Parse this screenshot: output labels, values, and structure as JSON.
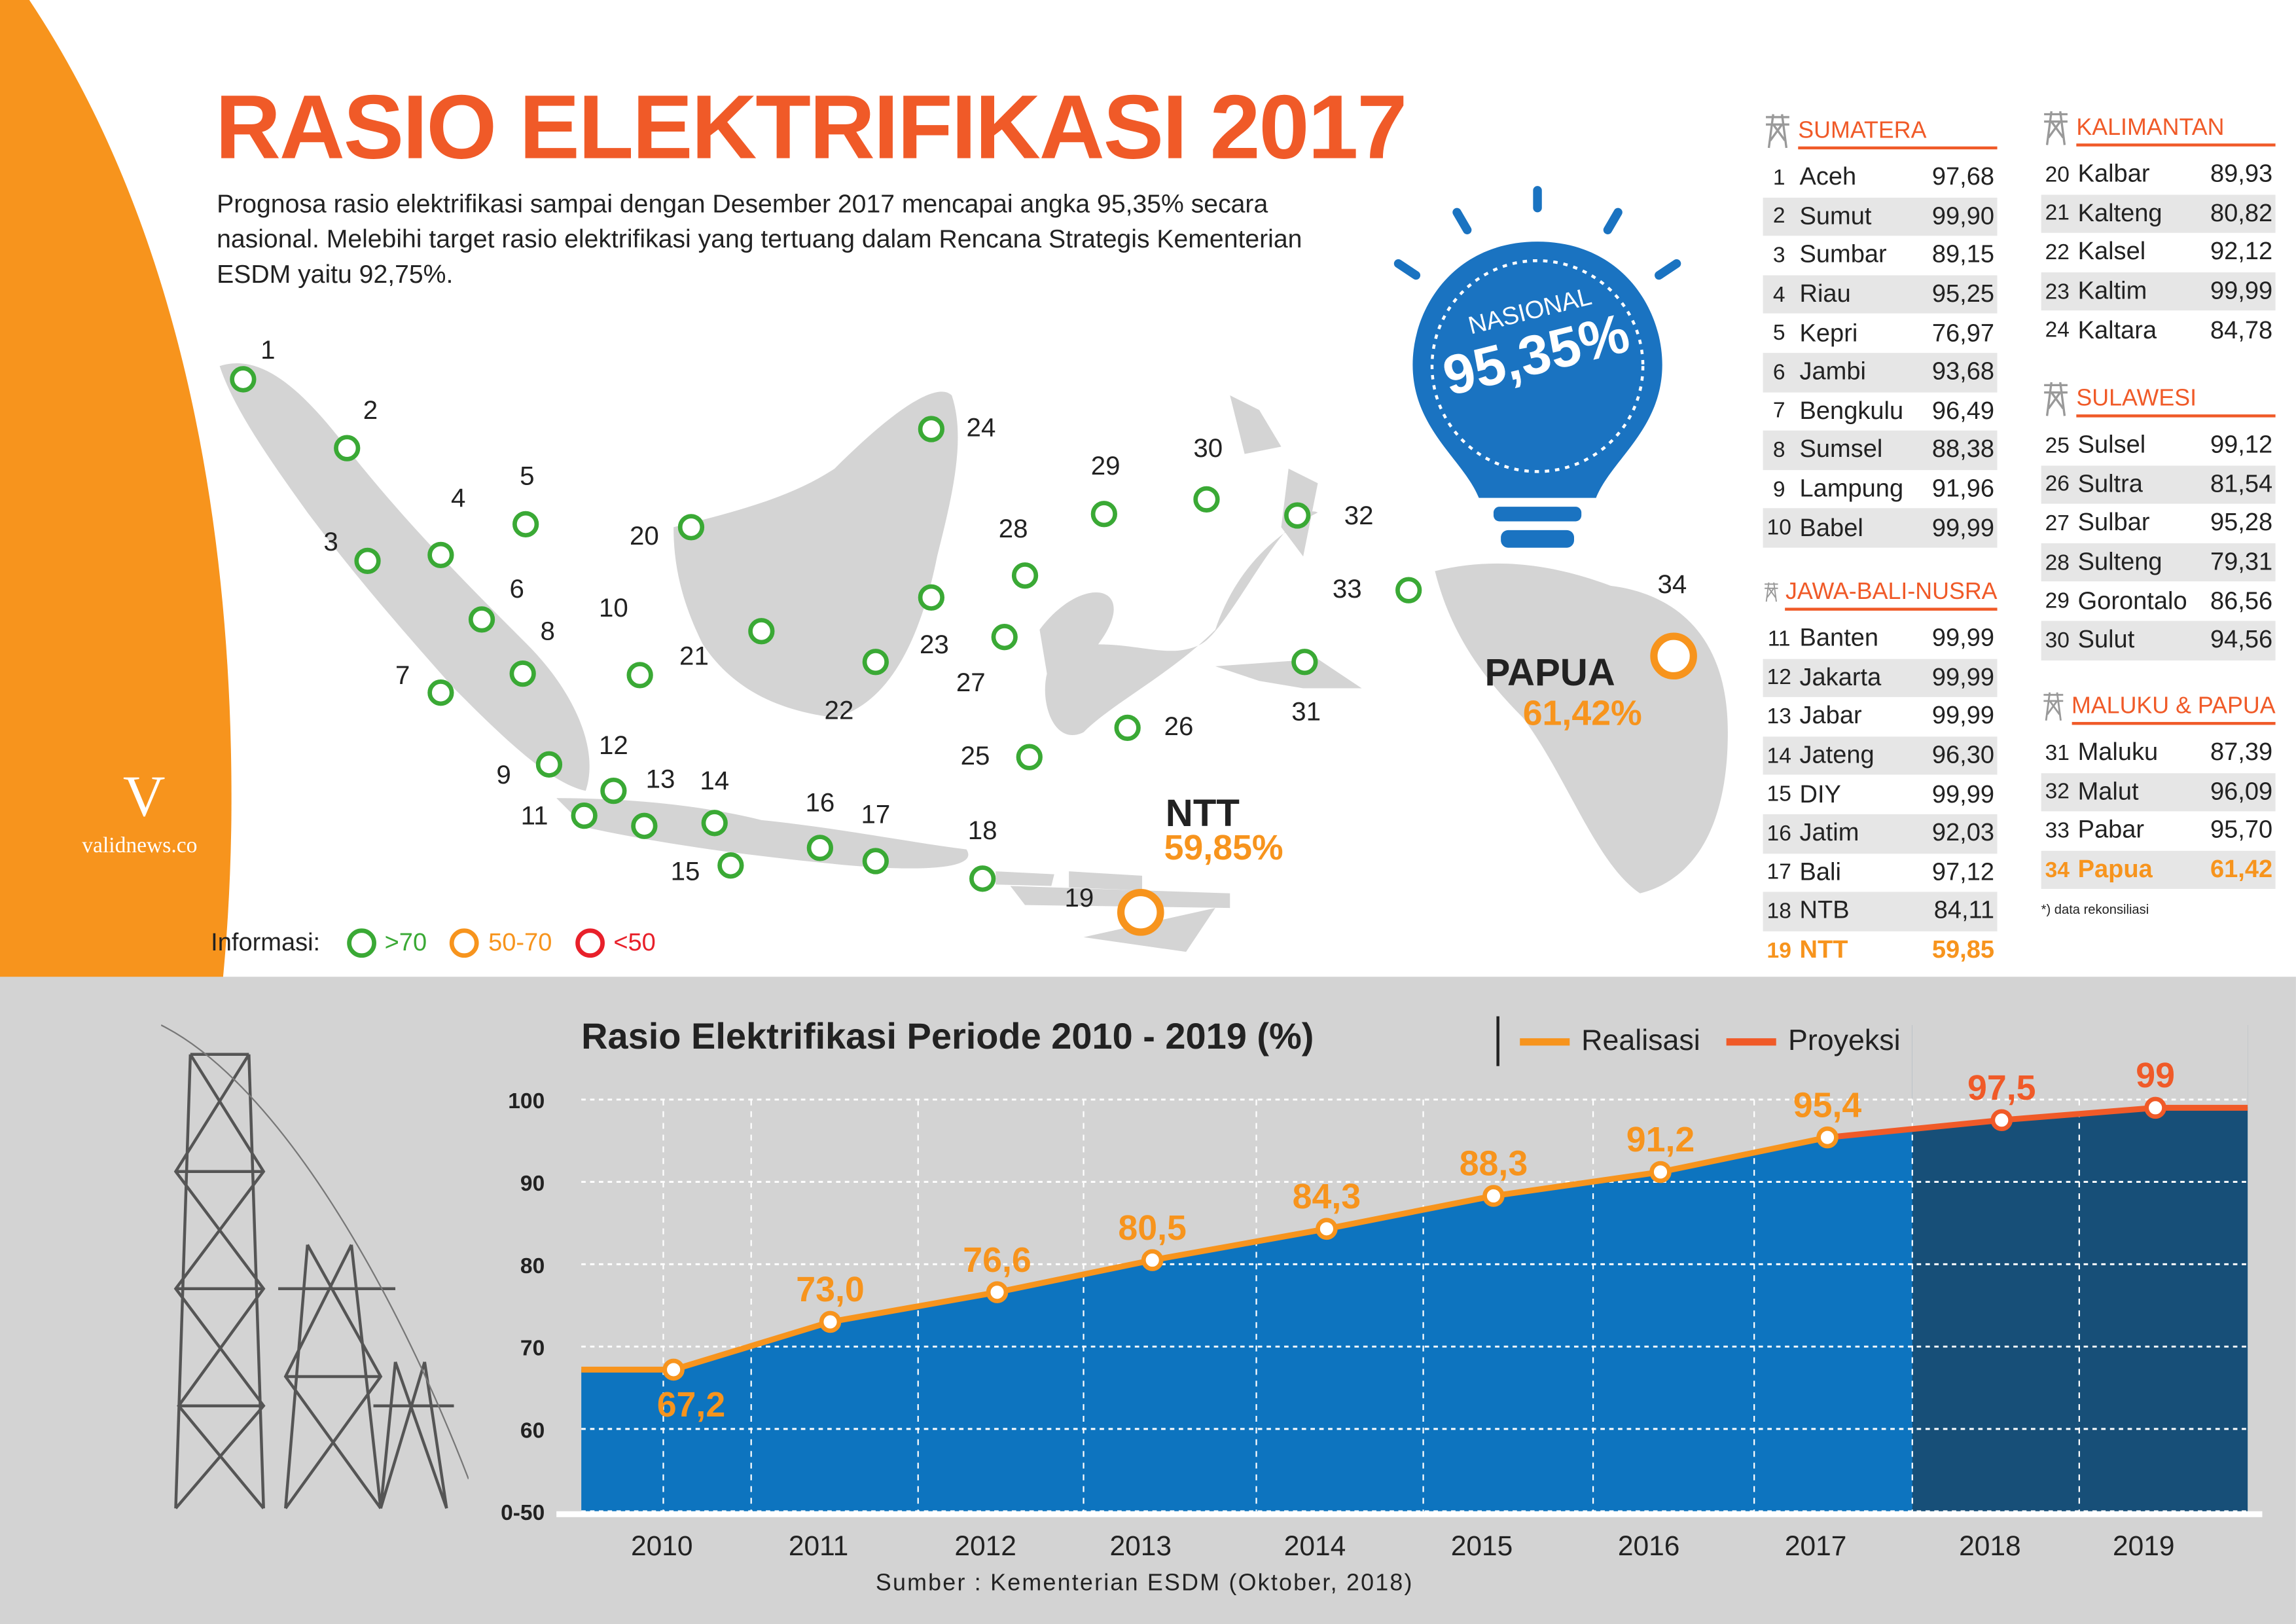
{
  "header": {
    "title": "RASIO ELEKTRIFIKASI 2017",
    "intro": "Prognosa rasio elektrifikasi sampai dengan Desember 2017 mencapai angka 95,35% secara nasional. Melebihi target rasio elektrifikasi yang tertuang dalam Rencana Strategis Kementerian ESDM yaitu 92,75%."
  },
  "nasional": {
    "label": "NASIONAL",
    "value": "95,35%"
  },
  "highlights": {
    "ntt_name": "NTT",
    "ntt_value": "59,85%",
    "papua_name": "PAPUA",
    "papua_value": "61,42%"
  },
  "legend": {
    "label": "Informasi:",
    "items": [
      {
        "text": ">70",
        "color": "#3aa935"
      },
      {
        "text": "50-70",
        "color": "#f7941d"
      },
      {
        "text": "<50",
        "color": "#e8202a"
      }
    ]
  },
  "map": {
    "markers": [
      {
        "n": "1",
        "status": ">70"
      },
      {
        "n": "2",
        "status": ">70"
      },
      {
        "n": "3",
        "status": ">70"
      },
      {
        "n": "4",
        "status": ">70"
      },
      {
        "n": "5",
        "status": ">70"
      },
      {
        "n": "6",
        "status": ">70"
      },
      {
        "n": "7",
        "status": ">70"
      },
      {
        "n": "8",
        "status": ">70"
      },
      {
        "n": "9",
        "status": ">70"
      },
      {
        "n": "10",
        "status": ">70"
      },
      {
        "n": "11",
        "status": ">70"
      },
      {
        "n": "12",
        "status": ">70"
      },
      {
        "n": "13",
        "status": ">70"
      },
      {
        "n": "14",
        "status": ">70"
      },
      {
        "n": "15",
        "status": ">70"
      },
      {
        "n": "16",
        "status": ">70"
      },
      {
        "n": "17",
        "status": ">70"
      },
      {
        "n": "18",
        "status": ">70"
      },
      {
        "n": "19",
        "status": "50-70"
      },
      {
        "n": "20",
        "status": ">70"
      },
      {
        "n": "21",
        "status": ">70"
      },
      {
        "n": "22",
        "status": ">70"
      },
      {
        "n": "23",
        "status": ">70"
      },
      {
        "n": "24",
        "status": ">70"
      },
      {
        "n": "25",
        "status": ">70"
      },
      {
        "n": "26",
        "status": ">70"
      },
      {
        "n": "27",
        "status": ">70"
      },
      {
        "n": "28",
        "status": ">70"
      },
      {
        "n": "29",
        "status": ">70"
      },
      {
        "n": "30",
        "status": ">70"
      },
      {
        "n": "31",
        "status": ">70"
      },
      {
        "n": "32",
        "status": ">70"
      },
      {
        "n": "33",
        "status": ">70"
      },
      {
        "n": "34",
        "status": "50-70"
      }
    ]
  },
  "regions": [
    {
      "title": "SUMATERA",
      "rows": [
        [
          "1",
          "Aceh",
          "97,68"
        ],
        [
          "2",
          "Sumut",
          "99,90"
        ],
        [
          "3",
          "Sumbar",
          "89,15"
        ],
        [
          "4",
          "Riau",
          "95,25"
        ],
        [
          "5",
          "Kepri",
          "76,97"
        ],
        [
          "6",
          "Jambi",
          "93,68"
        ],
        [
          "7",
          "Bengkulu",
          "96,49"
        ],
        [
          "8",
          "Sumsel",
          "88,38"
        ],
        [
          "9",
          "Lampung",
          "91,96"
        ],
        [
          "10",
          "Babel",
          "99,99"
        ]
      ]
    },
    {
      "title": "JAWA-BALI-NUSRA",
      "rows": [
        [
          "11",
          "Banten",
          "99,99"
        ],
        [
          "12",
          "Jakarta",
          "99,99"
        ],
        [
          "13",
          "Jabar",
          "99,99"
        ],
        [
          "14",
          "Jateng",
          "96,30"
        ],
        [
          "15",
          "DIY",
          "99,99"
        ],
        [
          "16",
          "Jatim",
          "92,03"
        ],
        [
          "17",
          "Bali",
          "97,12"
        ],
        [
          "18",
          "NTB",
          "84,11"
        ],
        [
          "19",
          "NTT",
          "59,85",
          "hl"
        ]
      ]
    },
    {
      "title": "KALIMANTAN",
      "rows": [
        [
          "20",
          "Kalbar",
          "89,93"
        ],
        [
          "21",
          "Kalteng",
          "80,82"
        ],
        [
          "22",
          "Kalsel",
          "92,12"
        ],
        [
          "23",
          "Kaltim",
          "99,99"
        ],
        [
          "24",
          "Kaltara",
          "84,78"
        ]
      ]
    },
    {
      "title": "SULAWESI",
      "rows": [
        [
          "25",
          "Sulsel",
          "99,12"
        ],
        [
          "26",
          "Sultra",
          "81,54"
        ],
        [
          "27",
          "Sulbar",
          "95,28"
        ],
        [
          "28",
          "Sulteng",
          "79,31"
        ],
        [
          "29",
          "Gorontalo",
          "86,56"
        ],
        [
          "30",
          "Sulut",
          "94,56"
        ]
      ]
    },
    {
      "title": "MALUKU & PAPUA",
      "rows": [
        [
          "31",
          "Maluku",
          "87,39"
        ],
        [
          "32",
          "Malut",
          "96,09"
        ],
        [
          "33",
          "Pabar",
          "95,70"
        ],
        [
          "34",
          "Papua",
          "61,42",
          "hl"
        ]
      ]
    }
  ],
  "note": "*) data rekonsiliasi",
  "brand": {
    "logo": "V",
    "name": "validnews.co"
  },
  "chart_data": {
    "type": "area",
    "title": "Rasio Elektrifikasi Periode 2010 - 2019 (%)",
    "categories": [
      "2010",
      "2011",
      "2012",
      "2013",
      "2014",
      "2015",
      "2016",
      "2017",
      "2018",
      "2019"
    ],
    "values": [
      67.2,
      73.0,
      76.6,
      80.5,
      84.3,
      88.3,
      91.2,
      95.4,
      97.5,
      99
    ],
    "labels": [
      "67,2",
      "73,0",
      "76,6",
      "80,5",
      "84,3",
      "88,3",
      "91,2",
      "95,4",
      "97,5",
      "99"
    ],
    "series": [
      {
        "name": "Realisasi",
        "color": "#f7941d",
        "years": [
          "2010",
          "2011",
          "2012",
          "2013",
          "2014",
          "2015",
          "2016",
          "2017"
        ]
      },
      {
        "name": "Proyeksi",
        "color": "#f05a28",
        "years": [
          "2018",
          "2019"
        ]
      }
    ],
    "yticks": [
      "0-50",
      "60",
      "70",
      "80",
      "90",
      "100"
    ],
    "ylim": [
      50,
      100
    ],
    "grid": true,
    "legend": "top-right",
    "source": "Sumber : Kementerian ESDM (Oktober, 2018)"
  }
}
